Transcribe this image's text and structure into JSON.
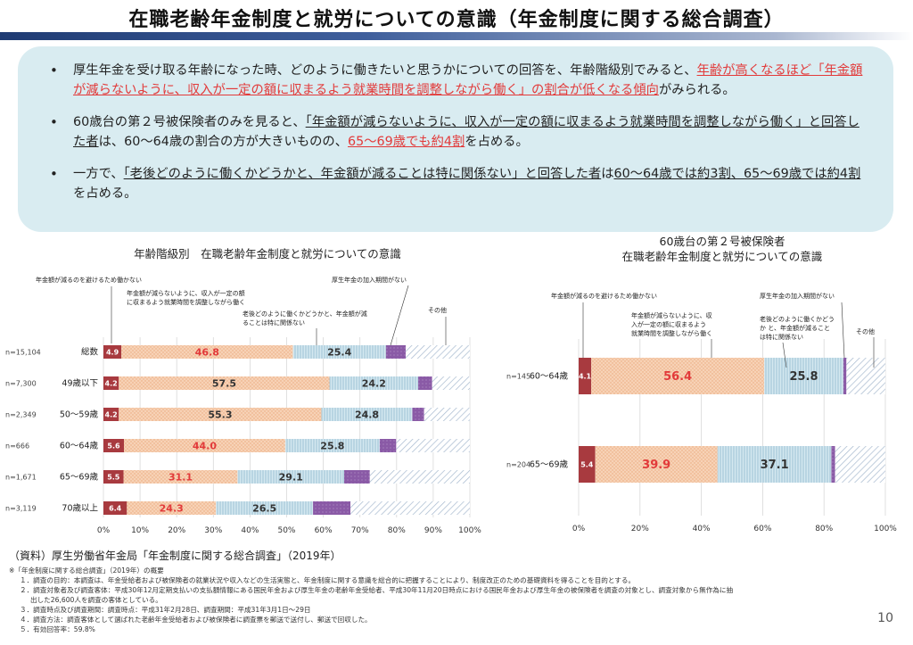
{
  "title": "在職老齢年金制度と就労についての意識（年金制度に関する総合調査）",
  "summary": {
    "b1_a": "厚生年金を受け取る年齢になった時、どのように働きたいと思うかについての回答を、年齢階級別でみると、",
    "b1_b": "年齢が高くなるほど「年金額が減らないように、収入が一定の額に収まるよう就業時間を調整しながら働く」の割合が低くなる傾向",
    "b1_c": "がみられる。",
    "b2_a": "60歳台の第２号被保険者のみを見ると、",
    "b2_b": "「年金額が減らないように、収入が一定の額に収まるよう就業時間を調整しながら働く」と回答した者",
    "b2_c": "は、60～64歳の割合の方が大きいものの、",
    "b2_d": "65～69歳でも約4割",
    "b2_e": "を占める。",
    "b3_a": "一方で、",
    "b3_b": "「老後どのように働くかどうかと、年金額が減ることは特に関係ない」と回答した者",
    "b3_c": "は",
    "b3_d": "60～64歳では約3割、65～69歳では約4割",
    "b3_e": "を占める。"
  },
  "left_title": "年齢階級別　在職老齢年金制度と就労についての意識",
  "right_title_1": "60歳台の第２号被保険者",
  "right_title_2": "在職老齢年金制度と就労についての意識",
  "annotations": {
    "a1": "年金額が減るのを避けるため働かない",
    "a2_1": "年金額が減らないように、収入が一定の額",
    "a2_2": "に収まるよう就業時間を調整しながら働く",
    "a3_1": "老後どのように働くかどうかと、年金額が減",
    "a3_2": "ることは特に関係ない",
    "a4": "厚生年金の加入期間がない",
    "a5": "その他"
  },
  "right_annotations": {
    "a1": "年金額が減るのを避けるため働かない",
    "a2_1": "年金額が減らないように、収",
    "a2_2": "入が一定の額に収まるよう",
    "a2_3": "就業時間を調整しながら働く",
    "a3_1": "老後どのように働くかどう",
    "a3_2": "か と、年金額が減ること",
    "a3_3": "は特に関係ない",
    "a4": "厚生年金の加入期間がない",
    "a5": "その他"
  },
  "colors": {
    "s1": "#a83a3f",
    "s2": "#f5caa9",
    "s3": "#c6dfe9",
    "s4": "#8e5fa8",
    "s5": "#b9c8da",
    "label_red": "#e23a3a"
  },
  "chart_data": [
    {
      "type": "bar",
      "orientation": "horizontal",
      "stacked": true,
      "title": "年齢階級別　在職老齢年金制度と就労についての意識",
      "categories": [
        "総数",
        "49歳以下",
        "50～59歳",
        "60～64歳",
        "65～69歳",
        "70歳以上"
      ],
      "n_labels": [
        "n=15,104",
        "n=7,300",
        "n=2,349",
        "n=666",
        "n=1,671",
        "n=3,119"
      ],
      "series": [
        {
          "name": "年金額が減るのを避けるため働かない",
          "values": [
            4.9,
            4.2,
            4.2,
            5.6,
            5.5,
            6.4
          ]
        },
        {
          "name": "年金額が減らないように、収入が一定の額に収まるよう就業時間を調整しながら働く",
          "values": [
            46.8,
            57.5,
            55.3,
            44.0,
            31.1,
            24.3
          ]
        },
        {
          "name": "老後どのように働くかどうかと、年金額が減ることは特に関係ない",
          "values": [
            25.4,
            24.2,
            24.8,
            25.8,
            29.1,
            26.5
          ]
        },
        {
          "name": "厚生年金の加入期間がない",
          "values": [
            5.4,
            3.8,
            3.2,
            4.5,
            7.0,
            10.2
          ]
        },
        {
          "name": "その他",
          "values": [
            17.5,
            10.3,
            12.5,
            20.1,
            27.3,
            32.6
          ]
        }
      ],
      "labeled": [
        [
          "4.9",
          "46.8",
          "25.4",
          "",
          ""
        ],
        [
          "4.2",
          "57.5",
          "24.2",
          "",
          ""
        ],
        [
          "4.2",
          "55.3",
          "24.8",
          "",
          ""
        ],
        [
          "5.6",
          "44.0",
          "25.8",
          "",
          ""
        ],
        [
          "5.5",
          "31.1",
          "29.1",
          "",
          ""
        ],
        [
          "6.4",
          "24.3",
          "26.5",
          "",
          ""
        ]
      ],
      "red_labels": [
        true,
        false,
        false,
        true,
        true,
        true
      ],
      "xlim": [
        0,
        100
      ],
      "ticks": [
        "0%",
        "10%",
        "20%",
        "30%",
        "40%",
        "50%",
        "60%",
        "70%",
        "80%",
        "90%",
        "100%"
      ]
    },
    {
      "type": "bar",
      "orientation": "horizontal",
      "stacked": true,
      "title": "60歳台の第２号被保険者 在職老齢年金制度と就労についての意識",
      "categories": [
        "60～64歳",
        "65～69歳"
      ],
      "n_labels": [
        "n=145",
        "n=204"
      ],
      "series": [
        {
          "name": "年金額が減るのを避けるため働かない",
          "values": [
            4.1,
            5.4
          ]
        },
        {
          "name": "年金額が減らないように、収入が一定の額に収まるよう就業時間を調整しながら働く",
          "values": [
            56.4,
            39.9
          ]
        },
        {
          "name": "老後どのように働くかどうかと、年金額が減ることは特に関係ない",
          "values": [
            25.8,
            37.1
          ]
        },
        {
          "name": "厚生年金の加入期間がない",
          "values": [
            1.0,
            1.2
          ]
        },
        {
          "name": "その他",
          "values": [
            12.7,
            16.4
          ]
        }
      ],
      "labeled": [
        [
          "4.1",
          "56.4",
          "25.8",
          "",
          ""
        ],
        [
          "5.4",
          "39.9",
          "37.1",
          "",
          ""
        ]
      ],
      "red_labels": [
        true,
        true
      ],
      "xlim": [
        0,
        100
      ],
      "ticks": [
        "0%",
        "20%",
        "40%",
        "60%",
        "80%",
        "100%"
      ]
    }
  ],
  "footer": {
    "source": "（資料）厚生労働省年金局「年金制度に関する総合調査」（2019年）",
    "head": "※「年金制度に関する総合調査」（2019年）の概要",
    "n1": "１．調査の目的：本調査は、年金受給者および被保険者の就業状況や収入などの生活実態と、年金制度に関する意識を総合的に把握することにより、制度改正のための基礎資料を得ることを目的とする。",
    "n2a": "２．調査対象者及び調査客体：平成30年12月定期支払いの支払額情報にある国民年金および厚生年金の老齢年金受給者、平成30年11月20日時点における国民年金および厚生年金の被保険者を調査の対象とし、調査対象から無作為に抽",
    "n2b": "出した26,600人を調査の客体としている。",
    "n3": "３．調査時点及び調査期間：調査時点：平成31年2月28日、調査期間：平成31年3月1日～29日",
    "n4": "４．調査方法：調査客体として選ばれた老齢年金受給者および被保険者に調査票を郵送で送付し、郵送で回収した。",
    "n5": "５．有効回答率：59.8%"
  },
  "page_number": "10"
}
